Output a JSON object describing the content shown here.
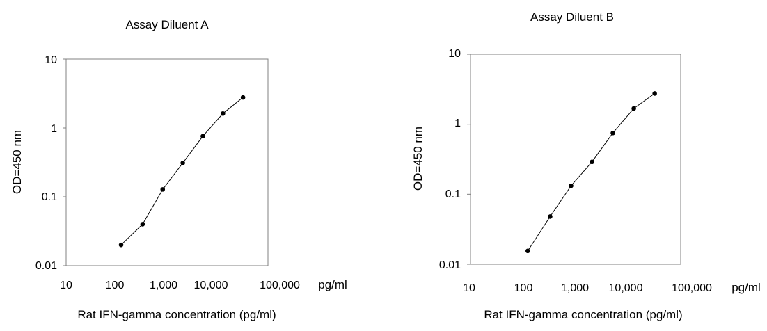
{
  "colors": {
    "background": "#ffffff",
    "ink": "#000000"
  },
  "chart_data": [
    {
      "type": "line",
      "title": "Assay Diluent A",
      "xlabel": "Rat IFN-gamma concentration (pg/ml)",
      "ylabel": "OD=450 nm",
      "x_scale": "log",
      "y_scale": "log",
      "xlim": [
        10,
        100000
      ],
      "ylim": [
        0.01,
        10
      ],
      "x_ticks": [
        10,
        100,
        1000,
        10000,
        100000
      ],
      "x_tick_labels": [
        "10",
        "100",
        "1,000",
        "10,000",
        "100,000"
      ],
      "x_unit": "pg/ml",
      "y_ticks": [
        0.01,
        0.1,
        1,
        10
      ],
      "y_tick_labels": [
        "0.01",
        "0.1",
        "1",
        "10"
      ],
      "grid": false,
      "series": [
        {
          "x": [
            123,
            328,
            820,
            2050,
            5120,
            12800,
            32000
          ],
          "y": [
            0.02,
            0.04,
            0.128,
            0.31,
            0.76,
            1.62,
            2.78
          ]
        }
      ]
    },
    {
      "type": "line",
      "title": "Assay Diluent B",
      "xlabel": "Rat IFN-gamma concentration (pg/ml)",
      "ylabel": "OD=450 nm",
      "x_scale": "log",
      "y_scale": "log",
      "xlim": [
        10,
        100000
      ],
      "ylim": [
        0.01,
        10
      ],
      "x_ticks": [
        10,
        100,
        1000,
        10000,
        100000
      ],
      "x_tick_labels": [
        "10",
        "100",
        "1,000",
        "10,000",
        "100,000"
      ],
      "x_unit": "pg/ml",
      "y_ticks": [
        0.01,
        0.1,
        1,
        10
      ],
      "y_tick_labels": [
        "0.01",
        "0.1",
        "1",
        "10"
      ],
      "grid": false,
      "series": [
        {
          "x": [
            123,
            328,
            820,
            2050,
            5120,
            12800,
            32000
          ],
          "y": [
            0.0155,
            0.048,
            0.132,
            0.29,
            0.75,
            1.68,
            2.75
          ]
        }
      ]
    }
  ]
}
